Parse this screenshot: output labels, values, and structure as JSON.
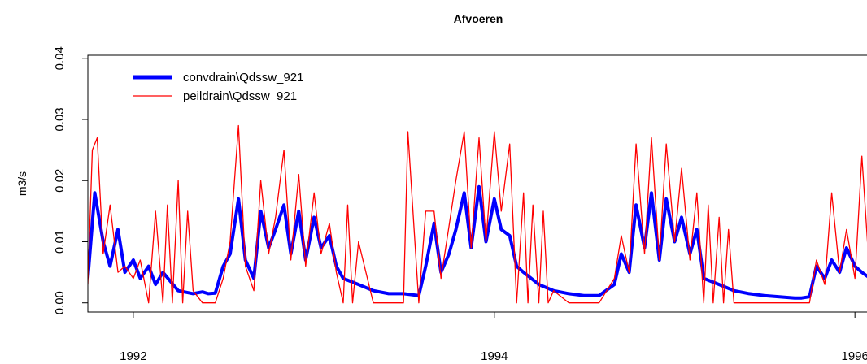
{
  "chart_data": {
    "type": "line",
    "title": "Afvoeren",
    "xlabel": "",
    "ylabel": "m3/s",
    "x_ticks": [
      "1992",
      "1994",
      "1996"
    ],
    "y_ticks": [
      "0.00",
      "0.01",
      "0.02",
      "0.03",
      "0.04"
    ],
    "xlim": [
      "1991-10-01",
      "1996-02-01"
    ],
    "ylim": [
      -0.0015,
      0.0405
    ],
    "grid": false,
    "legend": "top-left",
    "series": [
      {
        "name": "convdrain\\Qdssw_921",
        "color": "#0000ff",
        "x": [
          "1991-10-01",
          "1991-10-15",
          "1991-11-01",
          "1991-11-15",
          "1991-12-01",
          "1991-12-15",
          "1992-01-01",
          "1992-01-15",
          "1992-02-01",
          "1992-02-15",
          "1992-03-01",
          "1992-04-01",
          "1992-05-01",
          "1992-05-20",
          "1992-06-01",
          "1992-06-15",
          "1992-07-01",
          "1992-07-15",
          "1992-08-01",
          "1992-08-15",
          "1992-09-01",
          "1992-09-15",
          "1992-10-01",
          "1992-10-15",
          "1992-11-01",
          "1992-11-15",
          "1992-12-01",
          "1992-12-15",
          "1993-01-01",
          "1993-01-15",
          "1993-02-01",
          "1993-02-15",
          "1993-03-01",
          "1993-04-01",
          "1993-05-01",
          "1993-06-01",
          "1993-07-01",
          "1993-08-01",
          "1993-08-15",
          "1993-09-01",
          "1993-09-15",
          "1993-10-01",
          "1993-10-15",
          "1993-11-01",
          "1993-11-15",
          "1993-12-01",
          "1993-12-15",
          "1994-01-01",
          "1994-01-15",
          "1994-02-01",
          "1994-02-15",
          "1994-03-01",
          "1994-04-01",
          "1994-05-01",
          "1994-06-01",
          "1994-07-01",
          "1994-08-01",
          "1994-09-01",
          "1994-09-15",
          "1994-10-01",
          "1994-10-15",
          "1994-11-01",
          "1994-11-15",
          "1994-12-01",
          "1994-12-15",
          "1995-01-01",
          "1995-01-15",
          "1995-02-01",
          "1995-02-15",
          "1995-03-01",
          "1995-04-01",
          "1995-05-01",
          "1995-06-01",
          "1995-07-01",
          "1995-08-01",
          "1995-09-01",
          "1995-09-15",
          "1995-10-01",
          "1995-10-15",
          "1995-11-01",
          "1995-11-15",
          "1995-12-01",
          "1995-12-15",
          "1996-01-01",
          "1996-01-15",
          "1996-02-01"
        ],
        "y": [
          0.004,
          0.018,
          0.01,
          0.006,
          0.012,
          0.005,
          0.007,
          0.004,
          0.006,
          0.003,
          0.005,
          0.002,
          0.0015,
          0.0018,
          0.0015,
          0.0016,
          0.006,
          0.008,
          0.017,
          0.007,
          0.004,
          0.015,
          0.009,
          0.012,
          0.016,
          0.008,
          0.015,
          0.007,
          0.014,
          0.009,
          0.011,
          0.006,
          0.004,
          0.003,
          0.002,
          0.0015,
          0.0015,
          0.0012,
          0.006,
          0.013,
          0.005,
          0.008,
          0.012,
          0.018,
          0.009,
          0.019,
          0.01,
          0.017,
          0.012,
          0.011,
          0.006,
          0.005,
          0.003,
          0.002,
          0.0015,
          0.0012,
          0.0012,
          0.003,
          0.008,
          0.005,
          0.016,
          0.009,
          0.018,
          0.007,
          0.017,
          0.01,
          0.014,
          0.008,
          0.012,
          0.004,
          0.003,
          0.002,
          0.0015,
          0.0012,
          0.001,
          0.0008,
          0.0008,
          0.001,
          0.006,
          0.004,
          0.007,
          0.005,
          0.009,
          0.006,
          0.005,
          0.004
        ]
      },
      {
        "name": "peildrain\\Qdssw_921",
        "color": "#ff0000",
        "x": [
          "1991-10-01",
          "1991-10-10",
          "1991-10-20",
          "1991-11-01",
          "1991-11-15",
          "1991-12-01",
          "1991-12-15",
          "1992-01-01",
          "1992-01-15",
          "1992-02-01",
          "1992-02-15",
          "1992-03-01",
          "1992-03-10",
          "1992-03-20",
          "1992-04-01",
          "1992-04-10",
          "1992-04-20",
          "1992-05-01",
          "1992-05-20",
          "1992-06-01",
          "1992-06-15",
          "1992-07-01",
          "1992-07-15",
          "1992-08-01",
          "1992-08-15",
          "1992-09-01",
          "1992-09-15",
          "1992-10-01",
          "1992-10-15",
          "1992-11-01",
          "1992-11-15",
          "1992-12-01",
          "1992-12-15",
          "1993-01-01",
          "1993-01-15",
          "1993-02-01",
          "1993-02-15",
          "1993-03-01",
          "1993-03-10",
          "1993-03-20",
          "1993-04-01",
          "1993-05-01",
          "1993-06-01",
          "1993-07-01",
          "1993-07-10",
          "1993-08-01",
          "1993-08-15",
          "1993-09-01",
          "1993-09-15",
          "1993-10-01",
          "1993-10-15",
          "1993-11-01",
          "1993-11-15",
          "1993-12-01",
          "1993-12-15",
          "1994-01-01",
          "1994-01-15",
          "1994-02-01",
          "1994-02-15",
          "1994-03-01",
          "1994-03-10",
          "1994-03-20",
          "1994-04-01",
          "1994-04-10",
          "1994-04-20",
          "1994-05-01",
          "1994-06-01",
          "1994-07-01",
          "1994-08-01",
          "1994-09-01",
          "1994-09-15",
          "1994-10-01",
          "1994-10-15",
          "1994-11-01",
          "1994-11-15",
          "1994-12-01",
          "1994-12-15",
          "1995-01-01",
          "1995-01-15",
          "1995-02-01",
          "1995-02-15",
          "1995-03-01",
          "1995-03-10",
          "1995-03-20",
          "1995-04-01",
          "1995-04-10",
          "1995-04-20",
          "1995-05-01",
          "1995-06-01",
          "1995-07-01",
          "1995-08-01",
          "1995-09-01",
          "1995-09-15",
          "1995-10-01",
          "1995-10-15",
          "1995-11-01",
          "1995-11-15",
          "1995-12-01",
          "1995-12-15",
          "1996-01-01",
          "1996-01-15",
          "1996-02-01"
        ],
        "y": [
          0.003,
          0.025,
          0.027,
          0.008,
          0.016,
          0.005,
          0.006,
          0.004,
          0.007,
          0.0,
          0.015,
          0.0,
          0.016,
          0.0,
          0.02,
          0.0,
          0.015,
          0.002,
          0.0,
          0.0,
          0.0,
          0.004,
          0.01,
          0.029,
          0.006,
          0.002,
          0.02,
          0.008,
          0.014,
          0.025,
          0.007,
          0.021,
          0.006,
          0.018,
          0.008,
          0.013,
          0.005,
          0.0,
          0.016,
          0.0,
          0.01,
          0.0,
          0.0,
          0.0,
          0.028,
          0.0,
          0.015,
          0.015,
          0.004,
          0.0125,
          0.02,
          0.028,
          0.009,
          0.027,
          0.01,
          0.028,
          0.015,
          0.026,
          0.0,
          0.018,
          0.0,
          0.016,
          0.0,
          0.015,
          0.0,
          0.002,
          0.0,
          0.0,
          0.0,
          0.004,
          0.011,
          0.005,
          0.026,
          0.008,
          0.027,
          0.007,
          0.026,
          0.01,
          0.022,
          0.007,
          0.018,
          0.0,
          0.016,
          0.0,
          0.014,
          0.0,
          0.012,
          0.0,
          0.0,
          0.0,
          0.0,
          0.0,
          0.0,
          0.0,
          0.007,
          0.003,
          0.018,
          0.005,
          0.012,
          0.004,
          0.024,
          0.003
        ]
      }
    ]
  }
}
